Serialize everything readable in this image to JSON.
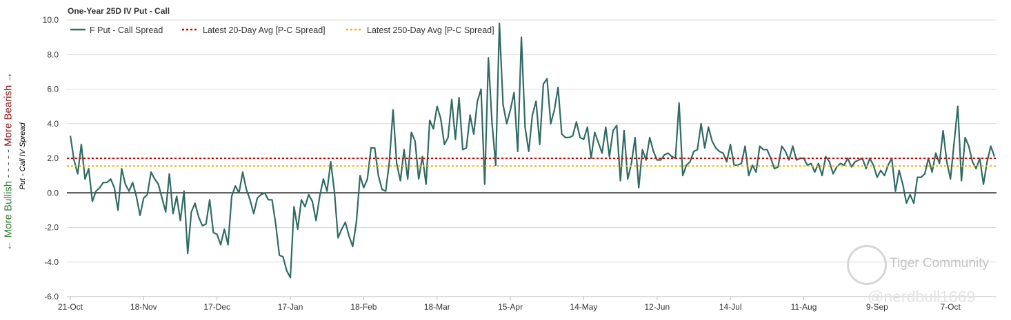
{
  "colors": {
    "series": "#2f6b63",
    "avg20": "#cc0000",
    "avg250": "#f0b400",
    "zero_line": "#000000",
    "grid": "#d9d9d9"
  },
  "side_labels": {
    "bullish": "← More Bullish",
    "separator": "- - - - -",
    "bearish": "More Bearish →",
    "spread": "Put - Call IV Spread"
  },
  "watermark": {
    "community": "Tiger Community",
    "user": "@nerdbull1669"
  },
  "chart_data": {
    "type": "line",
    "title": "One-Year 25D IV Put - Call",
    "xlabel": "",
    "ylabel": "",
    "ylim": [
      -6.0,
      10.0
    ],
    "yticks": [
      "10.0",
      "8.0",
      "6.0",
      "4.0",
      "2.0",
      "0.0",
      "-2.0",
      "-4.0",
      "-6.0"
    ],
    "ytick_values": [
      10,
      8,
      6,
      4,
      2,
      0,
      -2,
      -4,
      -6
    ],
    "xtick_labels": [
      "21-Oct",
      "18-Nov",
      "17-Dec",
      "17-Jan",
      "18-Feb",
      "18-Mar",
      "15-Apr",
      "14-May",
      "12-Jun",
      "14-Jul",
      "11-Aug",
      "9-Sep",
      "7-Oct"
    ],
    "xtick_index": [
      0,
      20,
      40,
      60,
      80,
      100,
      120,
      140,
      160,
      180,
      200,
      220,
      240
    ],
    "grid": true,
    "legend_position": "top-left",
    "series": [
      {
        "name": "F Put - Call Spread",
        "values": [
          3.3,
          1.9,
          1.1,
          2.8,
          0.8,
          1.4,
          -0.5,
          0.1,
          0.3,
          0.6,
          0.6,
          0.8,
          0.3,
          -1.0,
          1.4,
          0.5,
          0.1,
          0.6,
          -0.2,
          -1.3,
          -0.3,
          -0.1,
          1.2,
          0.8,
          0.5,
          -0.3,
          -1.1,
          1.1,
          -1.2,
          -0.2,
          -1.6,
          0.1,
          -3.5,
          -1.1,
          -0.6,
          -1.4,
          -1.9,
          -1.8,
          -0.4,
          -2.3,
          -2.4,
          -3.0,
          -2.1,
          -3.0,
          -0.2,
          0.4,
          0.0,
          1.2,
          0.2,
          -0.4,
          -1.2,
          -0.3,
          -0.1,
          0.0,
          -0.4,
          -0.4,
          -1.8,
          -3.6,
          -3.7,
          -4.5,
          -4.9,
          -0.8,
          -2.1,
          -0.4,
          -0.8,
          -0.1,
          -0.5,
          -1.6,
          -0.2,
          0.8,
          0.1,
          1.8,
          0.1,
          -2.6,
          -2.1,
          -1.7,
          -2.5,
          -3.1,
          -1.7,
          1.0,
          0.3,
          0.8,
          2.6,
          2.6,
          1.0,
          0.2,
          0.1,
          1.8,
          4.8,
          1.7,
          0.7,
          2.5,
          0.8,
          3.5,
          3.0,
          0.8,
          2.1,
          0.5,
          4.2,
          3.7,
          5.0,
          4.3,
          2.8,
          3.2,
          5.4,
          3.1,
          5.5,
          2.5,
          2.6,
          4.5,
          3.4,
          5.3,
          6.0,
          0.5,
          7.8,
          4.0,
          1.6,
          9.8,
          5.1,
          4.0,
          4.8,
          5.8,
          2.4,
          9.0,
          3.8,
          2.4,
          4.5,
          5.3,
          2.8,
          6.3,
          6.6,
          4.0,
          4.8,
          6.1,
          3.4,
          3.2,
          3.2,
          3.3,
          4.1,
          3.2,
          3.1,
          3.8,
          2.0,
          3.5,
          2.9,
          2.3,
          3.8,
          2.1,
          3.6,
          3.9,
          0.7,
          3.6,
          0.8,
          1.7,
          3.2,
          0.3,
          2.5,
          1.9,
          3.2,
          2.4,
          1.9,
          1.9,
          2.2,
          2.3,
          2.1,
          2.0,
          5.2,
          1.0,
          1.6,
          1.8,
          2.4,
          2.5,
          4.0,
          2.6,
          3.8,
          3.0,
          2.6,
          2.4,
          2.3,
          1.8,
          2.8,
          1.6,
          1.6,
          1.7,
          2.7,
          1.0,
          1.6,
          1.2,
          2.7,
          2.5,
          2.5,
          2.0,
          1.4,
          1.5,
          2.7,
          2.4,
          1.9,
          2.7,
          1.9,
          2.0,
          2.0,
          1.6,
          1.7,
          1.2,
          1.7,
          1.0,
          2.1,
          1.8,
          1.1,
          1.5,
          1.7,
          1.6,
          2.0,
          1.5,
          1.8,
          1.9,
          2.0,
          1.4,
          2.0,
          1.6,
          0.9,
          1.3,
          1.0,
          1.6,
          2.0,
          0.1,
          1.3,
          0.5,
          -0.6,
          -0.1,
          -0.6,
          0.9,
          0.9,
          1.1,
          2.0,
          1.2,
          2.3,
          1.7,
          3.6,
          1.8,
          0.8,
          2.9,
          5.0,
          0.7,
          3.2,
          2.7,
          1.8,
          1.4,
          2.0,
          0.5,
          1.8,
          2.7,
          2.1
        ]
      },
      {
        "name": "Latest 20-Day Avg [P-C Spread]",
        "value": 2.0,
        "style": "dotted"
      },
      {
        "name": "Latest 250-Day Avg [P-C Spread]",
        "value": 1.55,
        "style": "dotted"
      }
    ]
  }
}
